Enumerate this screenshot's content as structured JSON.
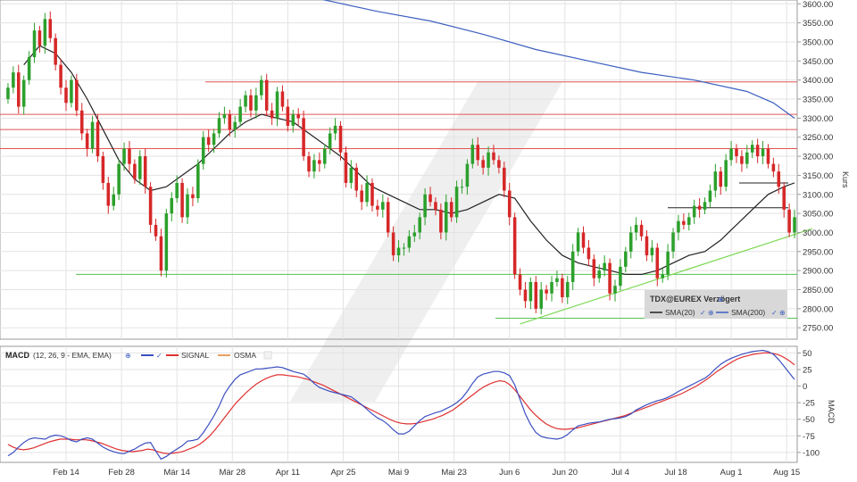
{
  "colors": {
    "grid": "#e3e3e3",
    "up": "#2ca02c",
    "down": "#d62728",
    "sma20": "#222222",
    "sma200": "#3b5fc0",
    "resistance": "#e25555",
    "support": "#55c255",
    "trend": "#7ed957",
    "macd": "#3b4fc0",
    "signal": "#e03030",
    "osma": "#e8a060"
  },
  "chart_data": [
    {
      "type": "candlestick",
      "ylabel": "Kurs",
      "ylim": [
        2720,
        3610
      ],
      "y_ticks": [
        "3600.00",
        "3550.00",
        "3500.00",
        "3450.00",
        "3400.00",
        "3350.00",
        "3300.00",
        "3250.00",
        "3200.00",
        "3150.00",
        "3100.00",
        "3050.00",
        "3000.00",
        "2950.00",
        "2900.00",
        "2850.00",
        "2800.00",
        "2750.00"
      ],
      "x_ticks": [
        "Feb 14",
        "Feb 28",
        "Mär 14",
        "Mär 28",
        "Apr 11",
        "Apr 25",
        "Mai 9",
        "Mai 23",
        "Jun 6",
        "Jun 20",
        "Jul 4",
        "Jul 18",
        "Aug 1",
        "Aug 15"
      ],
      "legend": {
        "title": "TDX@EUREX Verzögert",
        "items": [
          "SMA(20)",
          "SMA(200)"
        ],
        "position": "bottom-right"
      },
      "close": [
        3380,
        3420,
        3330,
        3400,
        3460,
        3530,
        3490,
        3560,
        3510,
        3440,
        3380,
        3340,
        3400,
        3320,
        3260,
        3220,
        3290,
        3200,
        3130,
        3070,
        3100,
        3180,
        3220,
        3180,
        3140,
        3200,
        3120,
        3020,
        2990,
        2900,
        3050,
        3090,
        3130,
        3040,
        3100,
        3090,
        3180,
        3250,
        3230,
        3260,
        3300,
        3310,
        3270,
        3290,
        3330,
        3360,
        3320,
        3360,
        3400,
        3320,
        3300,
        3370,
        3330,
        3280,
        3310,
        3300,
        3200,
        3160,
        3190,
        3180,
        3220,
        3260,
        3280,
        3210,
        3130,
        3170,
        3110,
        3080,
        3130,
        3070,
        3060,
        3080,
        3000,
        2940,
        2960,
        2960,
        2990,
        3000,
        3040,
        3100,
        3080,
        3060,
        3000,
        3080,
        3040,
        3120,
        3120,
        3180,
        3230,
        3190,
        3170,
        3210,
        3190,
        3170,
        3110,
        3040,
        2890,
        2850,
        2820,
        2870,
        2800,
        2850,
        2840,
        2870,
        2880,
        2830,
        2870,
        2950,
        3000,
        2960,
        2930,
        2880,
        2900,
        2920,
        2840,
        2860,
        2910,
        2950,
        3000,
        3020,
        2990,
        2940,
        2960,
        2880,
        2890,
        2950,
        3000,
        3030,
        3020,
        3040,
        3070,
        3060,
        3080,
        3110,
        3160,
        3120,
        3190,
        3220,
        3200,
        3180,
        3210,
        3230,
        3200,
        3220,
        3180,
        3160,
        3120,
        3060,
        3000,
        3040
      ],
      "overlays": [
        {
          "name": "SMA(20)",
          "values": [
            [
              3,
              3440
            ],
            [
              6,
              3490
            ],
            [
              9,
              3470
            ],
            [
              12,
              3420
            ],
            [
              15,
              3350
            ],
            [
              18,
              3270
            ],
            [
              21,
              3190
            ],
            [
              24,
              3140
            ],
            [
              27,
              3110
            ],
            [
              30,
              3120
            ],
            [
              33,
              3150
            ],
            [
              36,
              3180
            ],
            [
              39,
              3220
            ],
            [
              42,
              3260
            ],
            [
              45,
              3290
            ],
            [
              48,
              3310
            ],
            [
              51,
              3300
            ],
            [
              54,
              3290
            ],
            [
              57,
              3260
            ],
            [
              60,
              3230
            ],
            [
              63,
              3200
            ],
            [
              66,
              3160
            ],
            [
              69,
              3120
            ],
            [
              72,
              3100
            ],
            [
              75,
              3080
            ],
            [
              78,
              3060
            ],
            [
              81,
              3060
            ],
            [
              84,
              3050
            ],
            [
              87,
              3060
            ],
            [
              90,
              3080
            ],
            [
              93,
              3100
            ],
            [
              96,
              3090
            ],
            [
              99,
              3030
            ],
            [
              102,
              2980
            ],
            [
              105,
              2940
            ],
            [
              108,
              2920
            ],
            [
              111,
              2910
            ],
            [
              114,
              2900
            ],
            [
              117,
              2890
            ],
            [
              120,
              2890
            ],
            [
              123,
              2900
            ],
            [
              126,
              2920
            ],
            [
              129,
              2940
            ],
            [
              132,
              2950
            ],
            [
              135,
              2980
            ],
            [
              138,
              3020
            ],
            [
              141,
              3060
            ],
            [
              144,
              3100
            ],
            [
              147,
              3120
            ],
            [
              149,
              3130
            ]
          ]
        },
        {
          "name": "SMA(200)",
          "values": [
            [
              54,
              3630
            ],
            [
              60,
              3610
            ],
            [
              70,
              3580
            ],
            [
              80,
              3555
            ],
            [
              90,
              3520
            ],
            [
              100,
              3480
            ],
            [
              110,
              3450
            ],
            [
              120,
              3420
            ],
            [
              130,
              3400
            ],
            [
              140,
              3370
            ],
            [
              145,
              3340
            ],
            [
              149,
              3300
            ]
          ]
        }
      ],
      "horizontal_lines": [
        3395,
        3310,
        3270,
        3220,
        2890,
        2775,
        3065,
        3130
      ],
      "trend_line": [
        [
          97,
          2760
        ],
        [
          149,
          3000
        ]
      ]
    },
    {
      "type": "line",
      "title": "MACD",
      "params": "(12, 26, 9 - EMA, EMA)",
      "ylabel": "MACD",
      "ylim": [
        -115,
        60
      ],
      "y_ticks": [
        "50",
        "25",
        "0",
        "-25",
        "-50",
        "-75",
        "-100"
      ],
      "legend_items": [
        "SIGNAL",
        "OSMA"
      ],
      "series": [
        {
          "name": "MACD",
          "values": [
            -105,
            -100,
            -92,
            -85,
            -80,
            -78,
            -79,
            -80,
            -76,
            -74,
            -75,
            -78,
            -82,
            -84,
            -80,
            -78,
            -80,
            -86,
            -92,
            -96,
            -99,
            -101,
            -102,
            -98,
            -95,
            -90,
            -86,
            -85,
            -98,
            -110,
            -106,
            -100,
            -95,
            -90,
            -83,
            -82,
            -80,
            -70,
            -58,
            -45,
            -30,
            -12,
            0,
            10,
            17,
            20,
            23,
            26,
            26,
            27,
            28,
            29,
            28,
            25,
            22,
            20,
            18,
            12,
            4,
            -2,
            -5,
            -8,
            -10,
            -12,
            -14,
            -16,
            -22,
            -28,
            -35,
            -42,
            -48,
            -52,
            -58,
            -66,
            -72,
            -72,
            -68,
            -60,
            -52,
            -46,
            -43,
            -40,
            -38,
            -34,
            -30,
            -25,
            -18,
            -8,
            4,
            14,
            18,
            20,
            22,
            22,
            20,
            16,
            2,
            -20,
            -42,
            -58,
            -70,
            -76,
            -78,
            -79,
            -80,
            -78,
            -73,
            -66,
            -60,
            -58,
            -56,
            -55,
            -54,
            -52,
            -50,
            -49,
            -48,
            -46,
            -42,
            -36,
            -32,
            -28,
            -25,
            -22,
            -20,
            -17,
            -13,
            -8,
            -4,
            0,
            4,
            8,
            12,
            18,
            26,
            33,
            38,
            42,
            45,
            48,
            50,
            52,
            53,
            54,
            52,
            48,
            40,
            30,
            20,
            10
          ]
        },
        {
          "name": "SIGNAL",
          "values": [
            -88,
            -92,
            -95,
            -96,
            -95,
            -93,
            -90,
            -87,
            -84,
            -82,
            -80,
            -80,
            -80,
            -81,
            -81,
            -81,
            -82,
            -84,
            -86,
            -89,
            -92,
            -95,
            -97,
            -98,
            -99,
            -98,
            -97,
            -95,
            -96,
            -99,
            -101,
            -102,
            -101,
            -100,
            -98,
            -95,
            -92,
            -88,
            -82,
            -75,
            -66,
            -56,
            -46,
            -36,
            -26,
            -18,
            -10,
            -3,
            3,
            8,
            12,
            15,
            17,
            17,
            16,
            15,
            14,
            12,
            10,
            7,
            4,
            1,
            -3,
            -7,
            -11,
            -15,
            -19,
            -23,
            -27,
            -31,
            -35,
            -39,
            -43,
            -47,
            -51,
            -54,
            -56,
            -57,
            -57,
            -56,
            -54,
            -52,
            -50,
            -47,
            -44,
            -40,
            -36,
            -30,
            -24,
            -18,
            -12,
            -6,
            -1,
            3,
            6,
            8,
            7,
            2,
            -6,
            -16,
            -26,
            -36,
            -44,
            -51,
            -57,
            -61,
            -64,
            -65,
            -65,
            -64,
            -63,
            -61,
            -59,
            -57,
            -55,
            -53,
            -51,
            -49,
            -47,
            -45,
            -42,
            -39,
            -36,
            -33,
            -30,
            -27,
            -24,
            -21,
            -18,
            -15,
            -12,
            -8,
            -4,
            0,
            5,
            10,
            16,
            22,
            27,
            32,
            37,
            41,
            44,
            46,
            48,
            49,
            50,
            50,
            49,
            47,
            43,
            38,
            32
          ]
        }
      ]
    }
  ]
}
